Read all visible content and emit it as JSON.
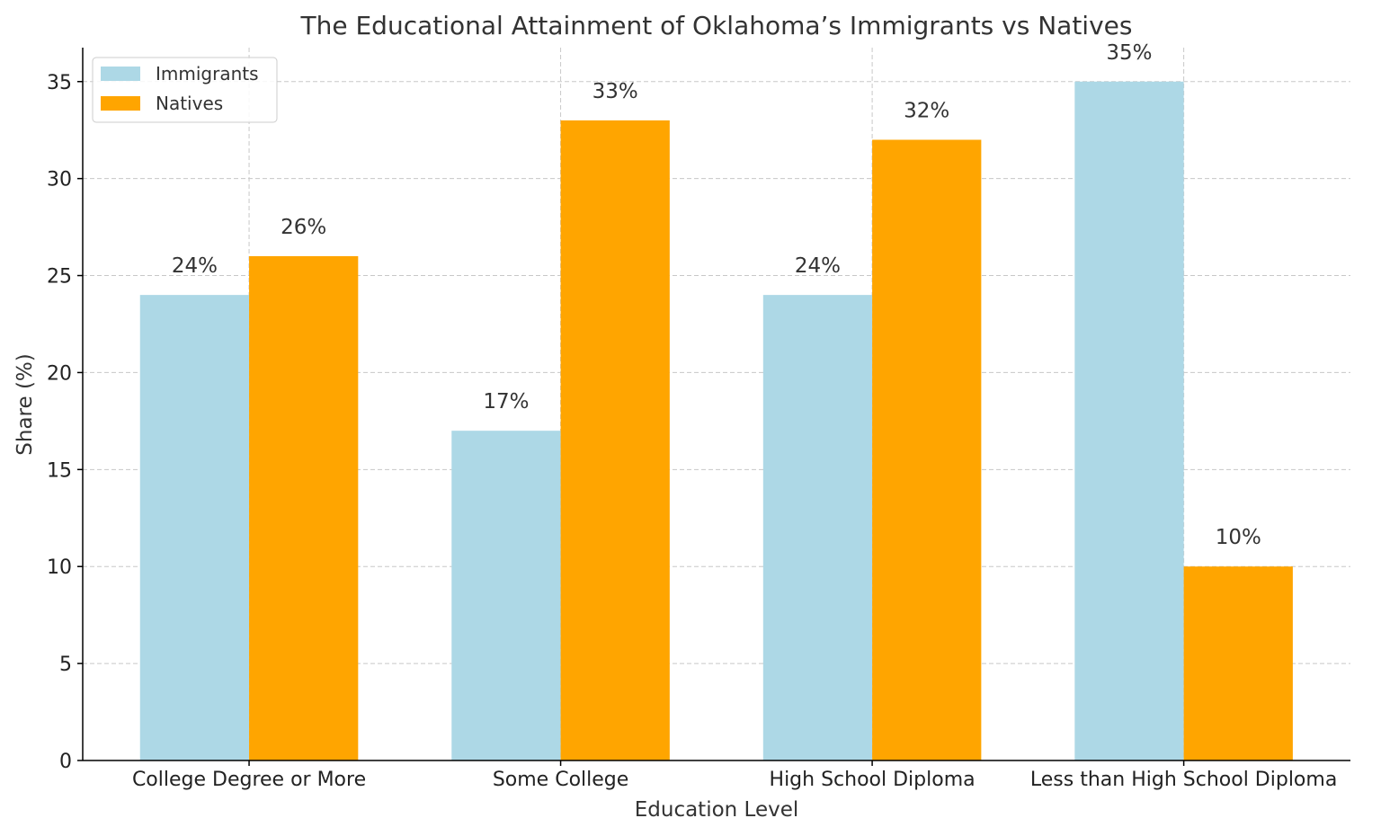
{
  "chart_data": {
    "type": "bar",
    "title": "The Educational Attainment of Oklahoma’s Immigrants vs Natives",
    "xlabel": "Education Level",
    "ylabel": "Share (%)",
    "categories": [
      "College Degree or More",
      "Some College",
      "High School Diploma",
      "Less than High School Diploma"
    ],
    "series": [
      {
        "name": "Immigrants",
        "values": [
          24,
          17,
          24,
          35
        ],
        "labels": [
          "24%",
          "17%",
          "24%",
          "35%"
        ],
        "color": "#ADD8E6"
      },
      {
        "name": "Natives",
        "values": [
          26,
          33,
          32,
          10
        ],
        "labels": [
          "26%",
          "33%",
          "32%",
          "10%"
        ],
        "color": "#FFA500"
      }
    ],
    "ylim": [
      0,
      36.75
    ],
    "yticks": [
      "0",
      "5",
      "10",
      "15",
      "20",
      "25",
      "30",
      "35"
    ],
    "grid": true,
    "legend": "top-left"
  }
}
